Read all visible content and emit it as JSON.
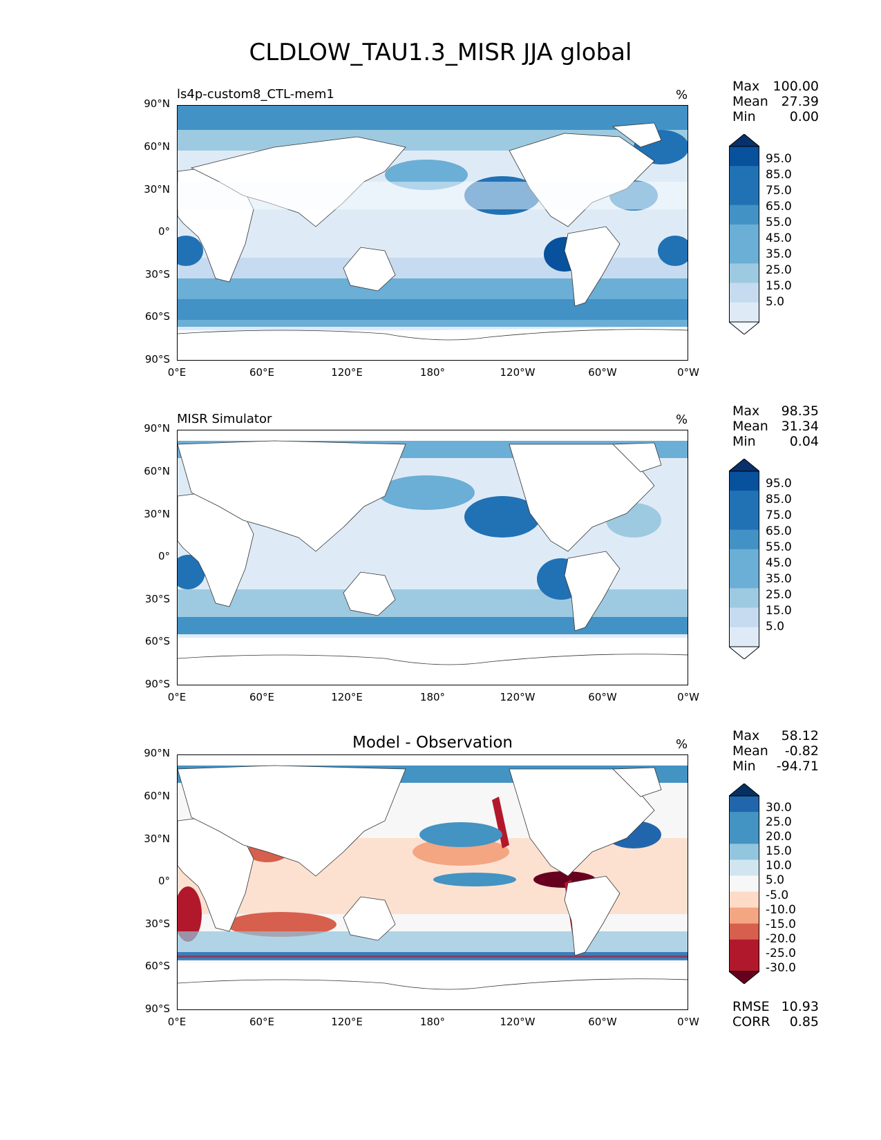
{
  "title": "CLDLOW_TAU1.3_MISR JJA global",
  "y_ticks": [
    "90°N",
    "60°N",
    "30°N",
    "0°",
    "30°S",
    "60°S",
    "90°S"
  ],
  "x_ticks": [
    "0°E",
    "60°E",
    "120°E",
    "180°",
    "120°W",
    "60°W",
    "0°W"
  ],
  "colors": {
    "blues": [
      "#f7fbff",
      "#deebf7",
      "#c6dbef",
      "#9ecae1",
      "#6baed6",
      "#4292c6",
      "#2171b5",
      "#08519c",
      "#08306b"
    ],
    "diff": [
      "#67001f",
      "#b2182b",
      "#d6604d",
      "#f4a582",
      "#fddbc7",
      "#f7f7f7",
      "#d1e5f0",
      "#92c5de",
      "#4393c3",
      "#2166ac",
      "#053061"
    ]
  },
  "panels": [
    {
      "subtitle": "ls4p-custom8_CTL-mem1",
      "unit": "%",
      "stats": {
        "max_label": "Max",
        "max": "100.00",
        "mean_label": "Mean",
        "mean": "27.39",
        "min_label": "Min",
        "min": "0.00"
      },
      "colorbar_labels": [
        "95.0",
        "85.0",
        "75.0",
        "65.0",
        "55.0",
        "45.0",
        "35.0",
        "25.0",
        "15.0",
        "5.0"
      ]
    },
    {
      "subtitle": "MISR Simulator",
      "unit": "%",
      "stats": {
        "max_label": "Max",
        "max": "98.35",
        "mean_label": "Mean",
        "mean": "31.34",
        "min_label": "Min",
        "min": "0.04"
      },
      "colorbar_labels": [
        "95.0",
        "85.0",
        "75.0",
        "65.0",
        "55.0",
        "45.0",
        "35.0",
        "25.0",
        "15.0",
        "5.0"
      ]
    },
    {
      "subtitle": "Model - Observation",
      "unit": "%",
      "stats": {
        "max_label": "Max",
        "max": "58.12",
        "mean_label": "Mean",
        "mean": "-0.82",
        "min_label": "Min",
        "min": "-94.71"
      },
      "colorbar_labels": [
        "30.0",
        "25.0",
        "20.0",
        "15.0",
        "10.0",
        "5.0",
        "-5.0",
        "-10.0",
        "-15.0",
        "-20.0",
        "-25.0",
        "-30.0"
      ],
      "rmse_label": "RMSE",
      "rmse": "10.93",
      "corr_label": "CORR",
      "corr": "0.85"
    }
  ],
  "chart_data": [
    {
      "type": "heatmap",
      "title": "ls4p-custom8_CTL-mem1",
      "unit": "%",
      "xlim": [
        0,
        360
      ],
      "ylim": [
        -90,
        90
      ],
      "max": 100.0,
      "mean": 27.39,
      "min": 0.0,
      "levels": [
        5,
        15,
        25,
        35,
        45,
        55,
        65,
        75,
        85,
        95
      ]
    },
    {
      "type": "heatmap",
      "title": "MISR Simulator",
      "unit": "%",
      "xlim": [
        0,
        360
      ],
      "ylim": [
        -90,
        90
      ],
      "max": 98.35,
      "mean": 31.34,
      "min": 0.04,
      "levels": [
        5,
        15,
        25,
        35,
        45,
        55,
        65,
        75,
        85,
        95
      ]
    },
    {
      "type": "heatmap",
      "title": "Model - Observation",
      "unit": "%",
      "xlim": [
        0,
        360
      ],
      "ylim": [
        -90,
        90
      ],
      "max": 58.12,
      "mean": -0.82,
      "min": -94.71,
      "rmse": 10.93,
      "corr": 0.85,
      "levels": [
        -30,
        -25,
        -20,
        -15,
        -10,
        -5,
        5,
        10,
        15,
        20,
        25,
        30
      ]
    }
  ]
}
